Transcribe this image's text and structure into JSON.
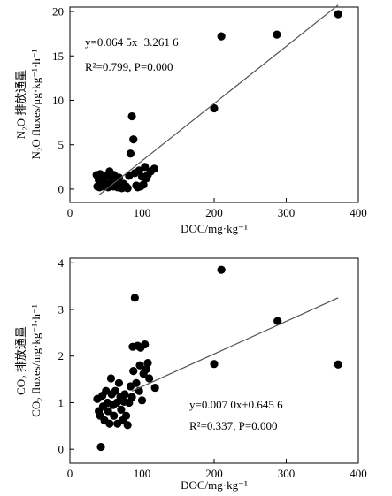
{
  "chart_data": [
    {
      "type": "scatter",
      "xlabel": "DOC/mg·kg⁻¹",
      "ylabel_cn": "N₂O 排放通量",
      "ylabel_en": "N₂O fluxes/μg·kg⁻¹·h⁻¹",
      "xlim": [
        0,
        400
      ],
      "ylim": [
        -1.5,
        20.5
      ],
      "xticks": [
        0,
        100,
        200,
        300,
        400
      ],
      "yticks": [
        0,
        5,
        10,
        15,
        20
      ],
      "grid": false,
      "equation": "y=0.064 5x−3.261 6",
      "r2_p": "R²=0.799, P=0.000",
      "trendline": {
        "slope": 0.0645,
        "intercept": -3.2616,
        "x_range": [
          40,
          372
        ]
      },
      "series": [
        {
          "points": [
            [
              37,
              1.6
            ],
            [
              38,
              0.3
            ],
            [
              40,
              1.0
            ],
            [
              41,
              0.2
            ],
            [
              42,
              1.7
            ],
            [
              43,
              0.6
            ],
            [
              45,
              1.2
            ],
            [
              47,
              0.3
            ],
            [
              48,
              1.4
            ],
            [
              50,
              0.6
            ],
            [
              51,
              1.5
            ],
            [
              53,
              0.2
            ],
            [
              55,
              2.0
            ],
            [
              57,
              0.7
            ],
            [
              58,
              1.1
            ],
            [
              60,
              0.3
            ],
            [
              61,
              1.6
            ],
            [
              63,
              0.5
            ],
            [
              65,
              1.0
            ],
            [
              66,
              0.2
            ],
            [
              68,
              1.3
            ],
            [
              70,
              0.4
            ],
            [
              72,
              0.1
            ],
            [
              74,
              0.6
            ],
            [
              76,
              0.2
            ],
            [
              78,
              0.3
            ],
            [
              80,
              0.1
            ],
            [
              82,
              1.5
            ],
            [
              84,
              4.0
            ],
            [
              86,
              8.2
            ],
            [
              88,
              5.6
            ],
            [
              90,
              1.8
            ],
            [
              92,
              0.4
            ],
            [
              94,
              0.2
            ],
            [
              96,
              2.1
            ],
            [
              98,
              0.3
            ],
            [
              100,
              1.4
            ],
            [
              102,
              0.5
            ],
            [
              104,
              2.5
            ],
            [
              106,
              1.2
            ],
            [
              108,
              1.6
            ],
            [
              112,
              2.0
            ],
            [
              117,
              2.3
            ],
            [
              200,
              9.1
            ],
            [
              210,
              17.2
            ],
            [
              287,
              17.4
            ],
            [
              372,
              19.7
            ]
          ]
        }
      ]
    },
    {
      "type": "scatter",
      "xlabel": "DOC/mg·kg⁻¹",
      "ylabel_cn": "CO₂ 排放通量",
      "ylabel_en": "CO₂ fluxes/mg·kg⁻¹·h⁻¹",
      "xlim": [
        0,
        400
      ],
      "ylim": [
        -0.3,
        4.1
      ],
      "xticks": [
        0,
        100,
        200,
        300,
        400
      ],
      "yticks": [
        0,
        1,
        2,
        3,
        4
      ],
      "grid": false,
      "equation": "y=0.007 0x+0.645 6",
      "r2_p": "R²=0.337, P=0.000",
      "trendline": {
        "slope": 0.007,
        "intercept": 0.6456,
        "x_range": [
          86,
          372
        ]
      },
      "series": [
        {
          "points": [
            [
              38,
              1.08
            ],
            [
              40,
              0.82
            ],
            [
              42,
              0.72
            ],
            [
              43,
              0.05
            ],
            [
              45,
              1.15
            ],
            [
              46,
              0.92
            ],
            [
              48,
              0.62
            ],
            [
              50,
              1.25
            ],
            [
              52,
              1.0
            ],
            [
              53,
              0.82
            ],
            [
              55,
              0.55
            ],
            [
              57,
              1.52
            ],
            [
              58,
              1.18
            ],
            [
              60,
              0.95
            ],
            [
              61,
              0.72
            ],
            [
              63,
              1.25
            ],
            [
              65,
              1.0
            ],
            [
              66,
              0.55
            ],
            [
              68,
              1.42
            ],
            [
              70,
              1.12
            ],
            [
              71,
              0.85
            ],
            [
              73,
              0.62
            ],
            [
              75,
              1.02
            ],
            [
              76,
              1.18
            ],
            [
              78,
              0.72
            ],
            [
              80,
              0.52
            ],
            [
              82,
              1.0
            ],
            [
              84,
              1.35
            ],
            [
              86,
              1.12
            ],
            [
              87,
              2.2
            ],
            [
              88,
              1.68
            ],
            [
              90,
              3.25
            ],
            [
              92,
              1.42
            ],
            [
              94,
              2.22
            ],
            [
              96,
              1.25
            ],
            [
              97,
              1.8
            ],
            [
              98,
              2.18
            ],
            [
              100,
              1.05
            ],
            [
              102,
              1.62
            ],
            [
              104,
              2.25
            ],
            [
              106,
              1.72
            ],
            [
              108,
              1.85
            ],
            [
              110,
              1.52
            ],
            [
              118,
              1.32
            ],
            [
              200,
              1.83
            ],
            [
              210,
              3.85
            ],
            [
              288,
              2.75
            ],
            [
              372,
              1.82
            ]
          ]
        }
      ]
    }
  ]
}
